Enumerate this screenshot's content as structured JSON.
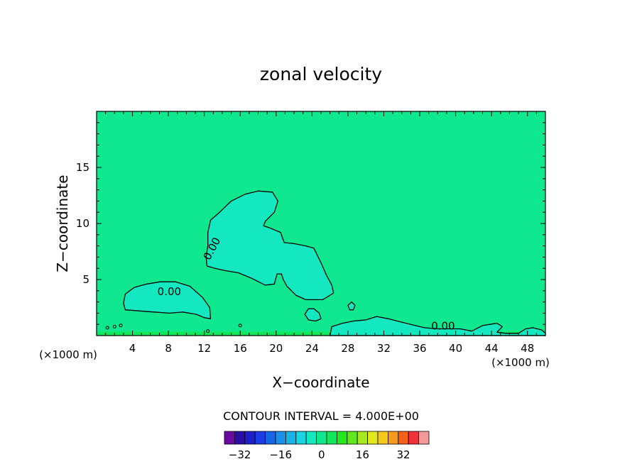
{
  "chart_data": {
    "type": "contour",
    "title": "zonal velocity",
    "xlabel": "X−coordinate",
    "ylabel": "Z−coordinate",
    "x_unit": "(×1000 m)",
    "x_unit_right": "(×1000 m)",
    "xlim": [
      0,
      50
    ],
    "ylim": [
      0,
      20
    ],
    "xticks": [
      4,
      8,
      12,
      16,
      20,
      24,
      28,
      32,
      36,
      40,
      44,
      48
    ],
    "xtick_labels": [
      "4",
      "8",
      "12",
      "16",
      "20",
      "24",
      "28",
      "32",
      "36",
      "40",
      "44",
      "48"
    ],
    "yticks": [
      5,
      10,
      15
    ],
    "ytick_labels": [
      "5",
      "10",
      "15"
    ],
    "background_value": 2,
    "contour_interval_text": "CONTOUR INTERVAL = 4.000E+00",
    "contour_interval": 4,
    "contour_label": "0.00",
    "regions": [
      {
        "name": "upper-cell",
        "value": -2,
        "points": [
          [
            12.4,
            9.2
          ],
          [
            12.7,
            10.3
          ],
          [
            13.7,
            11.0
          ],
          [
            15.0,
            12.0
          ],
          [
            16.5,
            12.6
          ],
          [
            18.0,
            12.9
          ],
          [
            19.6,
            12.8
          ],
          [
            20.2,
            12.0
          ],
          [
            19.8,
            11.0
          ],
          [
            18.8,
            10.2
          ],
          [
            18.6,
            9.8
          ],
          [
            19.3,
            9.6
          ],
          [
            20.5,
            9.2
          ],
          [
            20.9,
            8.3
          ],
          [
            22.0,
            8.2
          ],
          [
            23.3,
            8.0
          ],
          [
            24.2,
            7.8
          ],
          [
            25.0,
            6.5
          ],
          [
            25.6,
            5.4
          ],
          [
            26.2,
            4.5
          ],
          [
            26.4,
            3.8
          ],
          [
            25.2,
            3.2
          ],
          [
            23.3,
            3.2
          ],
          [
            22.2,
            3.6
          ],
          [
            21.2,
            4.4
          ],
          [
            20.8,
            5.0
          ],
          [
            20.6,
            5.5
          ],
          [
            20.1,
            5.5
          ],
          [
            19.8,
            4.6
          ],
          [
            18.8,
            4.5
          ],
          [
            17.3,
            5.1
          ],
          [
            15.8,
            5.6
          ],
          [
            14.3,
            5.8
          ],
          [
            13.2,
            6.0
          ],
          [
            12.3,
            6.2
          ],
          [
            12.2,
            7.0
          ],
          [
            12.4,
            8.0
          ]
        ]
      },
      {
        "name": "lower-left-cell",
        "value": -2,
        "points": [
          [
            3.2,
            2.3
          ],
          [
            4.7,
            2.2
          ],
          [
            6.4,
            2.1
          ],
          [
            8.1,
            2.0
          ],
          [
            9.6,
            2.1
          ],
          [
            11.1,
            1.9
          ],
          [
            12.0,
            1.6
          ],
          [
            12.7,
            1.5
          ],
          [
            12.6,
            2.5
          ],
          [
            11.8,
            3.4
          ],
          [
            10.4,
            4.4
          ],
          [
            8.8,
            4.8
          ],
          [
            7.1,
            4.8
          ],
          [
            5.6,
            4.6
          ],
          [
            4.2,
            4.3
          ],
          [
            3.2,
            3.7
          ],
          [
            3.0,
            2.9
          ]
        ]
      },
      {
        "name": "small-cell-24",
        "value": -2,
        "points": [
          [
            23.2,
            1.9
          ],
          [
            23.6,
            1.4
          ],
          [
            24.4,
            1.3
          ],
          [
            25.0,
            1.5
          ],
          [
            24.8,
            2.0
          ],
          [
            24.2,
            2.4
          ],
          [
            23.6,
            2.4
          ]
        ]
      },
      {
        "name": "small-cell-28",
        "value": -2,
        "points": [
          [
            28.0,
            2.7
          ],
          [
            28.2,
            2.3
          ],
          [
            28.6,
            2.3
          ],
          [
            28.8,
            2.7
          ],
          [
            28.4,
            3.0
          ]
        ]
      },
      {
        "name": "right-surface-cell",
        "value": -2,
        "points": [
          [
            26.0,
            0
          ],
          [
            26.2,
            0.8
          ],
          [
            27.4,
            1.1
          ],
          [
            28.6,
            1.3
          ],
          [
            30.0,
            1.4
          ],
          [
            31.2,
            1.7
          ],
          [
            32.5,
            1.5
          ],
          [
            33.5,
            1.3
          ],
          [
            35.0,
            1.0
          ],
          [
            36.5,
            0.7
          ],
          [
            38.0,
            0.6
          ],
          [
            40.5,
            0.6
          ],
          [
            41.8,
            0.4
          ],
          [
            43.0,
            0.9
          ],
          [
            44.6,
            1.1
          ],
          [
            45.2,
            0.8
          ],
          [
            44.6,
            0.3
          ],
          [
            45.6,
            0.2
          ],
          [
            47.0,
            0.2
          ],
          [
            47.8,
            0.6
          ],
          [
            48.6,
            0.7
          ],
          [
            49.6,
            0.5
          ],
          [
            50,
            0.2
          ],
          [
            50,
            0
          ]
        ]
      }
    ],
    "surface_band": {
      "value": 6,
      "height": 0.35
    },
    "colorbar": {
      "values": [
        -36,
        -32,
        -28,
        -24,
        -20,
        -16,
        -12,
        -8,
        -4,
        0,
        4,
        8,
        12,
        16,
        20,
        24,
        28,
        32,
        36
      ],
      "colors": [
        "#6b0aa3",
        "#2a0ea6",
        "#1d20c8",
        "#1b3be3",
        "#1666e6",
        "#1a8fe8",
        "#1ab3e6",
        "#18d6e0",
        "#14e8c0",
        "#10e890",
        "#10e85a",
        "#24e81e",
        "#60e81c",
        "#a8e81c",
        "#e3e81c",
        "#f5c81c",
        "#f59a1c",
        "#f5601c",
        "#f0303a"
      ],
      "extra_color": "#f29a9a",
      "tick_values": [
        -32,
        -16,
        0,
        16,
        32
      ],
      "tick_labels": [
        "−32",
        "−16",
        "0",
        "16",
        "32"
      ]
    }
  }
}
